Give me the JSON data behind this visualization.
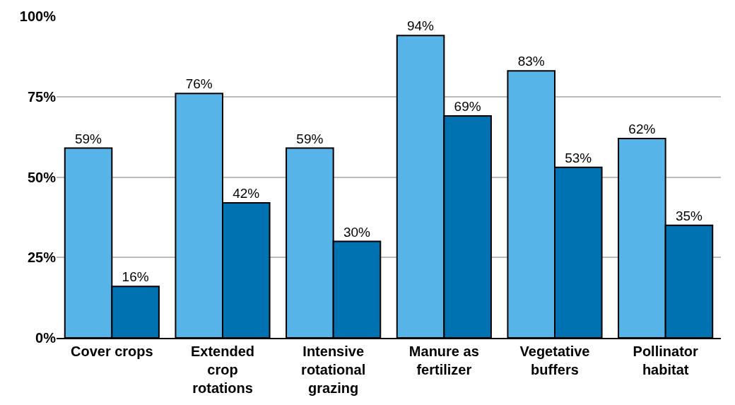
{
  "chart_data": {
    "type": "bar",
    "categories": [
      "Cover crops",
      "Extended\ncrop\nrotations",
      "Intensive\nrotational\ngrazing",
      "Manure as\nfertilizer",
      "Vegetative\nbuffers",
      "Pollinator\nhabitat"
    ],
    "series": [
      {
        "color": "#56b4e9",
        "values": [
          59,
          76,
          59,
          94,
          83,
          62
        ],
        "value_labels": [
          "59%",
          "76%",
          "59%",
          "94%",
          "83%",
          "62%"
        ]
      },
      {
        "color": "#0072b2",
        "values": [
          16,
          42,
          30,
          69,
          53,
          35
        ],
        "value_labels": [
          "16%",
          "42%",
          "30%",
          "69%",
          "53%",
          "35%"
        ]
      }
    ],
    "ylim": [
      0,
      100
    ],
    "yticks": [
      {
        "value": 0,
        "label": "0%"
      },
      {
        "value": 25,
        "label": "25%"
      },
      {
        "value": 50,
        "label": "50%"
      },
      {
        "value": 75,
        "label": "75%"
      },
      {
        "value": 100,
        "label": "100%"
      }
    ],
    "grid": "y"
  }
}
